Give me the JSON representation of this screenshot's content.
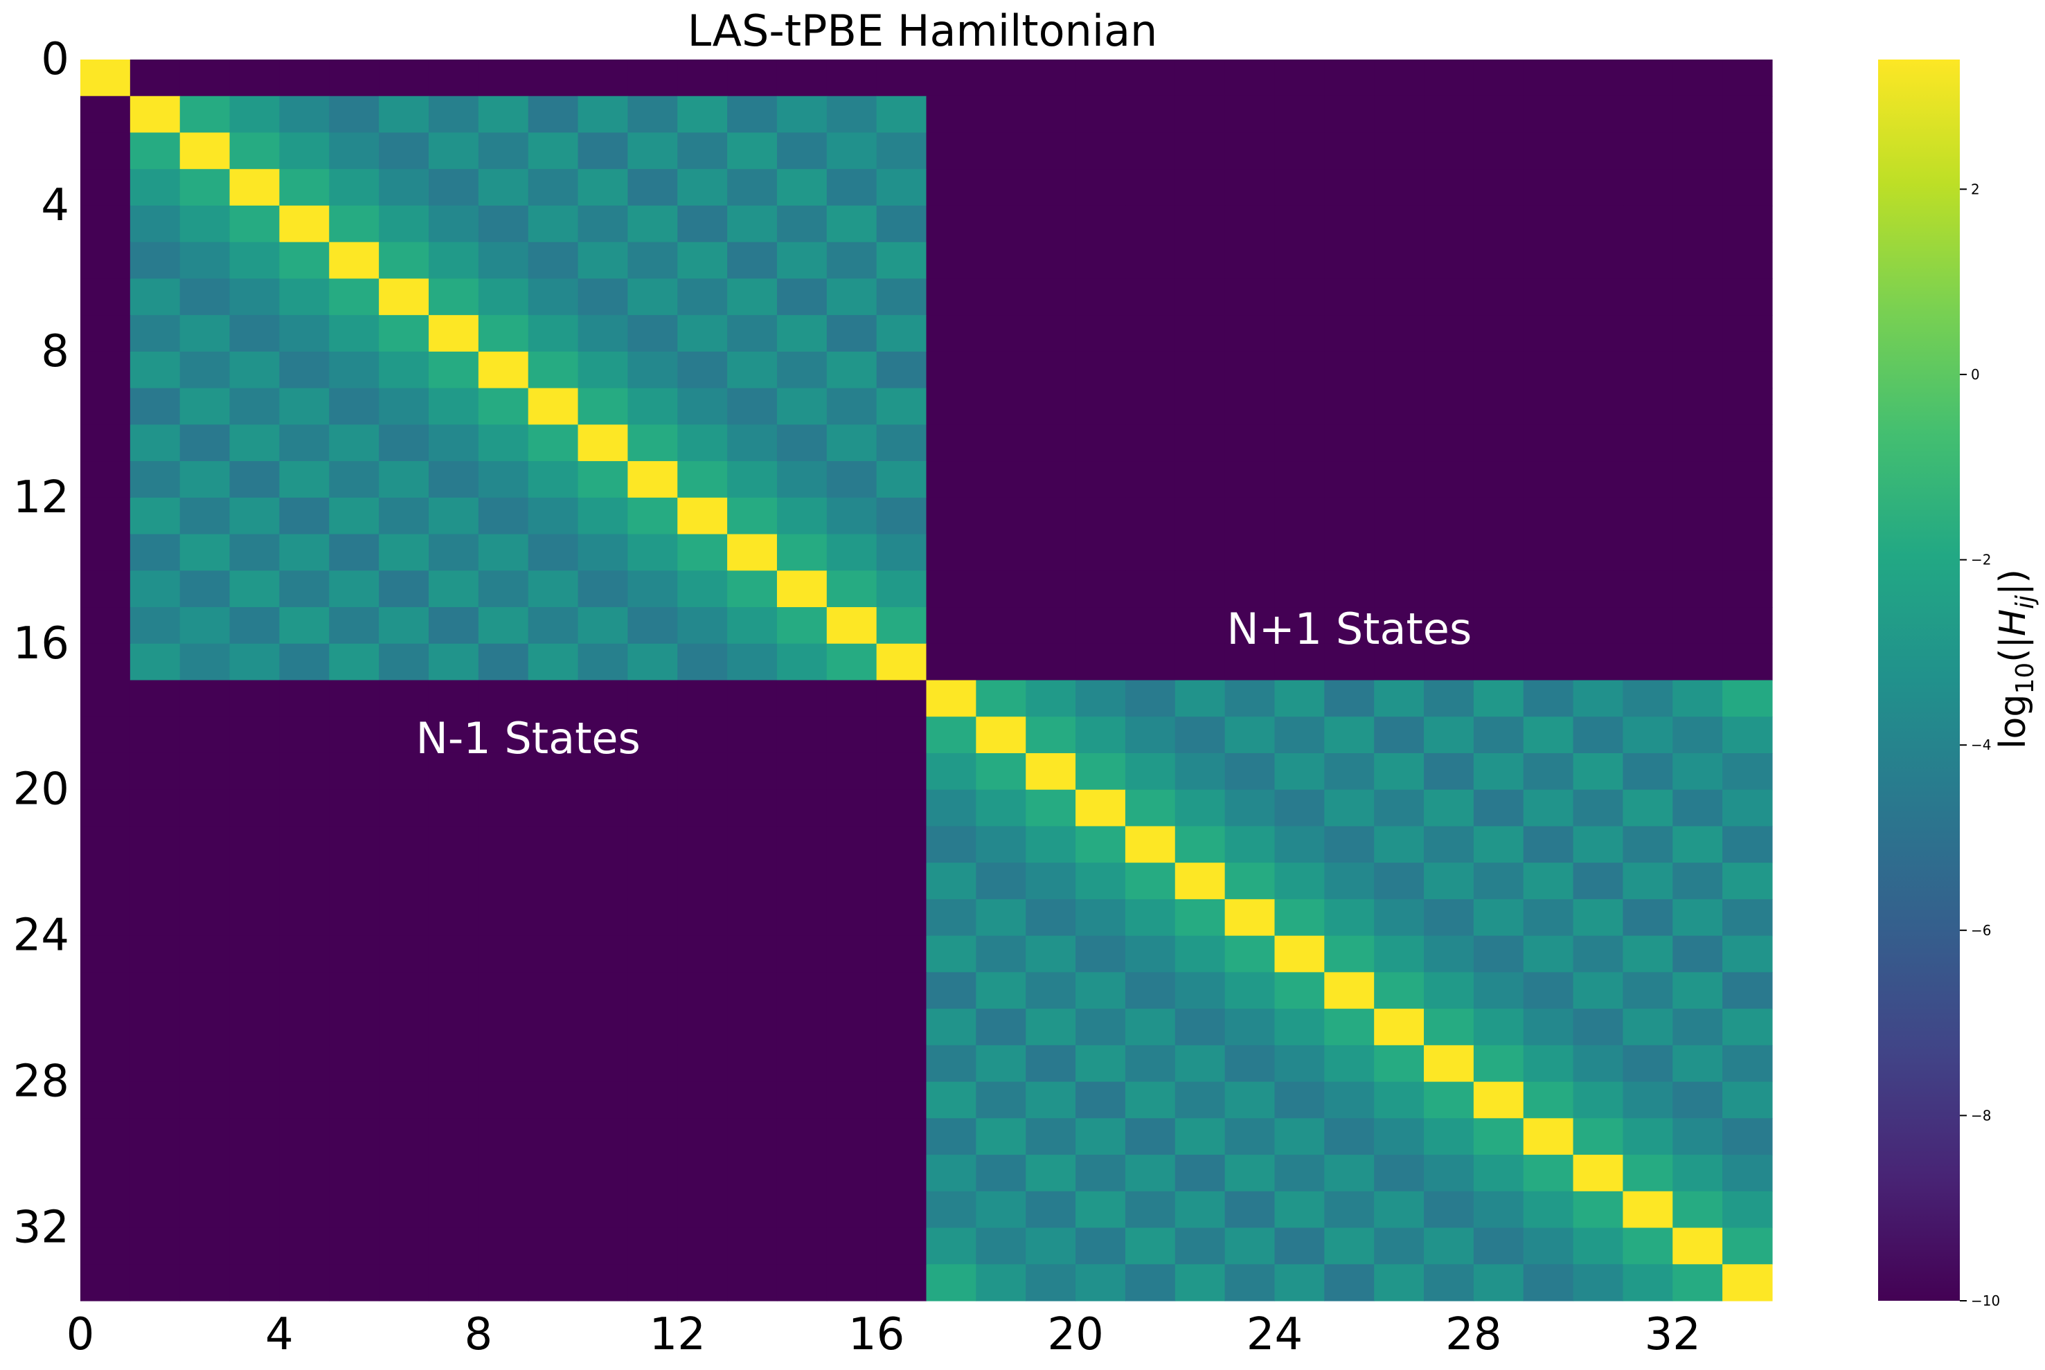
{
  "chart_data": {
    "type": "heatmap",
    "title": "LAS-tPBE Hamiltonian",
    "n": 34,
    "x_ticks": [
      0,
      4,
      8,
      12,
      16,
      20,
      24,
      28,
      32
    ],
    "y_ticks": [
      0,
      4,
      8,
      12,
      16,
      20,
      24,
      28,
      32
    ],
    "colorbar": {
      "label": "log10(|Hij|)",
      "label_base": "log",
      "label_subscript": "10",
      "label_open": "(|",
      "label_var": "H",
      "label_var_sub": "ij",
      "label_close": "|)",
      "colormap": "viridis",
      "vmin": -10,
      "vmax": 3.4,
      "ticks": [
        2,
        0,
        -2,
        -4,
        -6,
        -8,
        -10
      ],
      "tick_labels": [
        "2",
        "0",
        "−2",
        "−4",
        "−6",
        "−8",
        "−10"
      ]
    },
    "blocks": [
      {
        "label": "N-1 States",
        "start": 1,
        "end": 17
      },
      {
        "label": "N+1 States",
        "start": 17,
        "end": 34
      }
    ],
    "background_value": -10,
    "diagonal_value": 3.4,
    "offdiag_value_by_distance": [
      3.4,
      -1.8,
      -2.8,
      -3.8,
      -4.5,
      -3.2,
      -4.2,
      -3.0,
      -4.6,
      -3.1,
      -4.3,
      -2.9,
      -4.4,
      -3.3,
      -4.1,
      -3.0,
      -1.9
    ],
    "annotations": [
      {
        "text": "N-1 States",
        "row": 19,
        "col": 9
      },
      {
        "text": "N+1 States",
        "row": 16,
        "col": 25.5
      }
    ]
  }
}
